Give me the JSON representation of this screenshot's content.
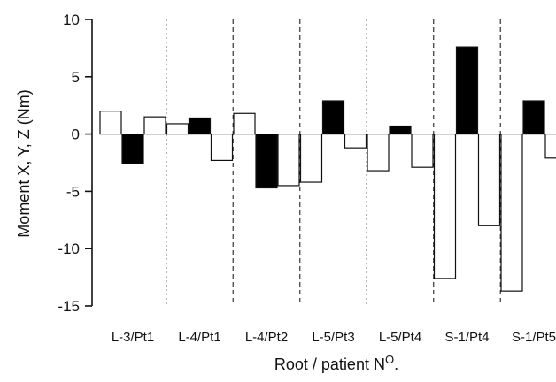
{
  "chart_data": {
    "type": "bar",
    "xlabel": "Root / patient N",
    "xlabel_super": "O",
    "ylabel": "Moment X, Y, Z (Nm)",
    "ylim": [
      -15,
      10
    ],
    "yticks": [
      10,
      5,
      0,
      -5,
      -10,
      -15
    ],
    "categories": [
      "L-3/Pt1",
      "L-4/Pt1",
      "L-4/Pt2",
      "L-5/Pt3",
      "L-5/Pt4",
      "S-1/Pt4",
      "S-1/Pt5"
    ],
    "series": [
      {
        "fill": "#ffffff",
        "values": [
          2.0,
          0.9,
          1.8,
          -4.2,
          -3.2,
          -12.6,
          -13.7
        ]
      },
      {
        "fill": "#000000",
        "values": [
          -2.6,
          1.4,
          -4.7,
          2.9,
          0.7,
          7.6,
          2.9
        ]
      },
      {
        "fill": "#ffffff",
        "values": [
          1.5,
          -2.3,
          -4.5,
          -1.2,
          -2.9,
          -8.0,
          -2.1
        ]
      }
    ],
    "separators": [
      "dotted",
      "dashed",
      "dashed",
      "dotted",
      "dashed",
      "dashed"
    ],
    "grid": false,
    "legend": "none"
  }
}
